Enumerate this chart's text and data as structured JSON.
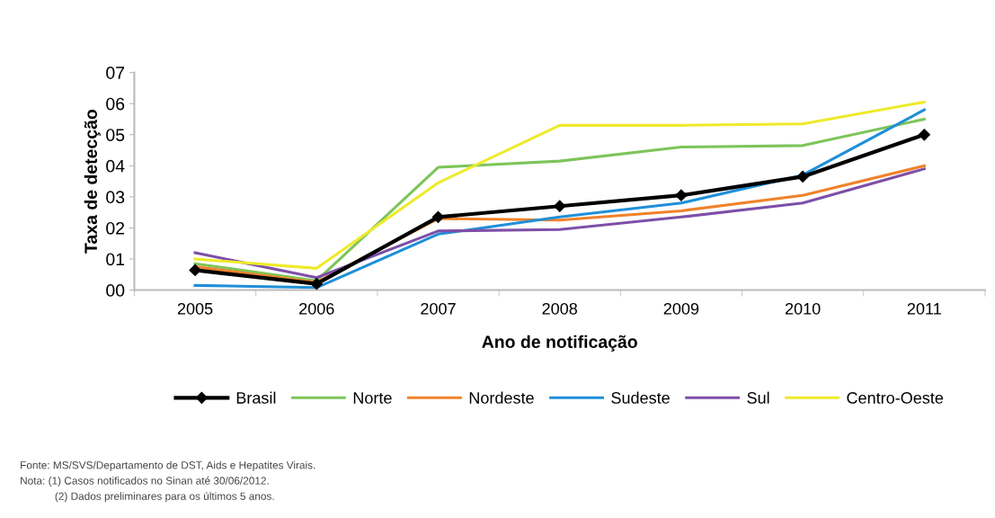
{
  "chart_data": {
    "type": "line",
    "xlabel": "Ano de notificação",
    "ylabel": "Taxa de detecção",
    "categories": [
      "2005",
      "2006",
      "2007",
      "2008",
      "2009",
      "2010",
      "2011"
    ],
    "ylim": [
      0,
      7
    ],
    "yticks": [
      {
        "value": 0,
        "label": "00"
      },
      {
        "value": 1,
        "label": "01"
      },
      {
        "value": 2,
        "label": "02"
      },
      {
        "value": 3,
        "label": "03"
      },
      {
        "value": 4,
        "label": "04"
      },
      {
        "value": 5,
        "label": "05"
      },
      {
        "value": 6,
        "label": "06"
      },
      {
        "value": 7,
        "label": "07"
      }
    ],
    "grid": false,
    "legend": "bottom",
    "series": [
      {
        "name": "Brasil",
        "color": "#000000",
        "marker": "diamond",
        "values": [
          0.64,
          0.2,
          2.35,
          2.7,
          3.05,
          3.65,
          5.0
        ]
      },
      {
        "name": "Norte",
        "color": "#7dc55a",
        "marker": "none",
        "values": [
          0.85,
          0.3,
          3.95,
          4.15,
          4.6,
          4.65,
          5.5
        ]
      },
      {
        "name": "Nordeste",
        "color": "#f0822a",
        "marker": "none",
        "values": [
          0.75,
          0.25,
          2.3,
          2.25,
          2.55,
          3.05,
          4.0
        ]
      },
      {
        "name": "Sudeste",
        "color": "#1f8fd8",
        "marker": "none",
        "values": [
          0.15,
          0.08,
          1.8,
          2.35,
          2.8,
          3.7,
          5.8
        ]
      },
      {
        "name": "Sul",
        "color": "#7d4fa8",
        "marker": "none",
        "values": [
          1.2,
          0.4,
          1.9,
          1.95,
          2.35,
          2.8,
          3.9
        ]
      },
      {
        "name": "Centro-Oeste",
        "color": "#eeea2a",
        "marker": "none",
        "values": [
          1.0,
          0.7,
          3.45,
          5.3,
          5.3,
          5.35,
          6.05
        ]
      }
    ],
    "annotations": [
      "Fonte: MS/SVS/Departamento de DST, Aids e Hepatites Virais.",
      "Nota: (1) Casos notificados no Sinan até 30/06/2012.",
      "(2) Dados preliminares para os últimos 5 anos."
    ]
  }
}
